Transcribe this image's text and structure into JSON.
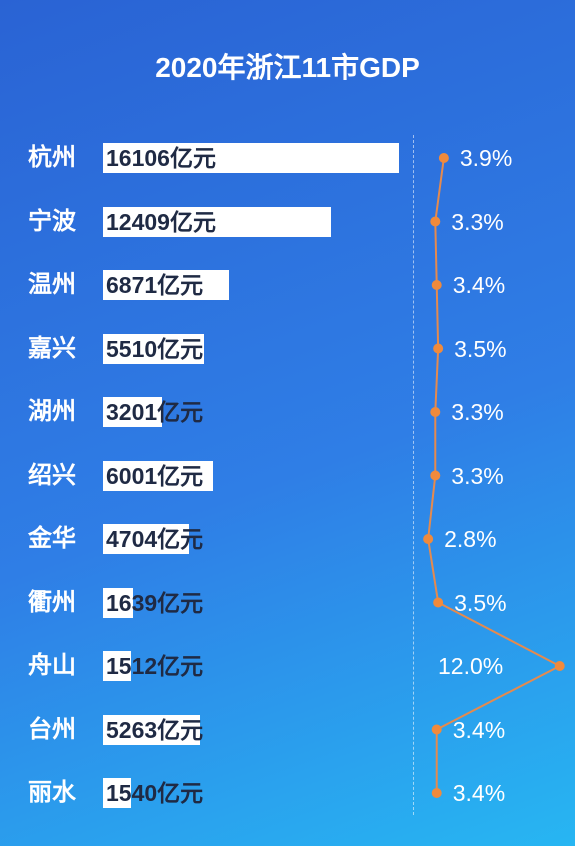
{
  "chart_data": {
    "type": "bar",
    "title": "2020年浙江11市GDP",
    "categories": [
      "杭州",
      "宁波",
      "温州",
      "嘉兴",
      "湖州",
      "绍兴",
      "金华",
      "衢州",
      "舟山",
      "台州",
      "丽水"
    ],
    "values": [
      16106,
      12409,
      6871,
      5510,
      3201,
      6001,
      4704,
      1639,
      1512,
      5263,
      1540
    ],
    "value_labels": [
      "16106亿元",
      "12409亿元",
      "6871亿元",
      "5510亿元",
      "3201亿元",
      "6001亿元",
      "4704亿元",
      "1639亿元",
      "1512亿元",
      "5263亿元",
      "1540亿元"
    ],
    "growth": [
      3.9,
      3.3,
      3.4,
      3.5,
      3.3,
      3.3,
      2.8,
      3.5,
      12.0,
      3.4,
      3.4
    ],
    "growth_labels": [
      "3.9%",
      "3.3%",
      "3.4%",
      "3.5%",
      "3.3%",
      "3.3%",
      "2.8%",
      "3.5%",
      "12.0%",
      "3.4%",
      "3.4%"
    ],
    "colors": {
      "bar": "#ffffff",
      "line": "#e58a4e",
      "point": "#f08a3c"
    }
  }
}
